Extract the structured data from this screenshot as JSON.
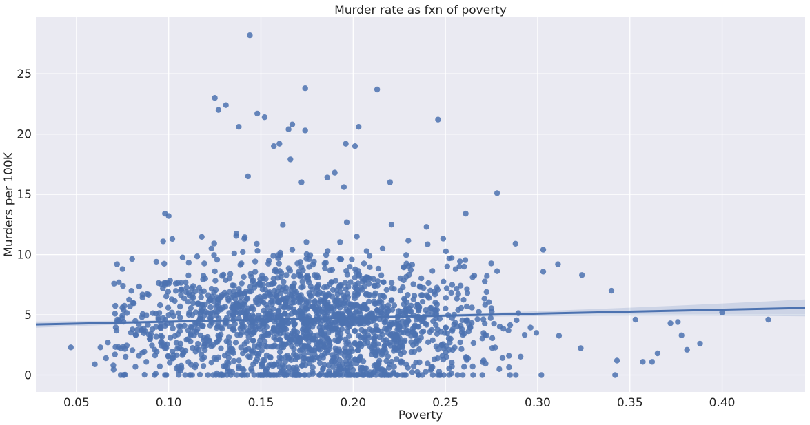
{
  "chart_data": {
    "type": "scatter",
    "title": "Murder rate as fxn of poverty",
    "xlabel": "Poverty",
    "ylabel": "Murders per 100K",
    "xlim": [
      0.028,
      0.445
    ],
    "ylim": [
      -1.4,
      29.7
    ],
    "xticks": [
      0.05,
      0.1,
      0.15,
      0.2,
      0.25,
      0.3,
      0.35,
      0.4
    ],
    "xtick_labels": [
      "0.05",
      "0.10",
      "0.15",
      "0.20",
      "0.25",
      "0.30",
      "0.35",
      "0.40"
    ],
    "yticks": [
      0,
      5,
      10,
      15,
      20,
      25
    ],
    "ytick_labels": [
      "0",
      "5",
      "10",
      "15",
      "20",
      "25"
    ],
    "grid": true,
    "colors": {
      "background": "#eaeaf2",
      "grid": "#ffffff",
      "points": "#4c72b0",
      "line": "#4c72b0",
      "ci_band": "#4c72b0"
    },
    "regression": {
      "intercept": 4.1,
      "slope": 3.32,
      "ci_halfwidth_at_mean": 0.07,
      "x_mean": 0.175
    },
    "highlighted_points": [
      {
        "x": 0.047,
        "y": 2.3
      },
      {
        "x": 0.06,
        "y": 0.9
      },
      {
        "x": 0.063,
        "y": 2.3
      },
      {
        "x": 0.066,
        "y": 1.4
      },
      {
        "x": 0.067,
        "y": 2.7
      },
      {
        "x": 0.07,
        "y": 0.8
      },
      {
        "x": 0.072,
        "y": 9.2
      },
      {
        "x": 0.073,
        "y": 7.7
      },
      {
        "x": 0.074,
        "y": 0.0
      },
      {
        "x": 0.075,
        "y": 8.8
      },
      {
        "x": 0.098,
        "y": 13.4
      },
      {
        "x": 0.1,
        "y": 13.2
      },
      {
        "x": 0.097,
        "y": 11.1
      },
      {
        "x": 0.102,
        "y": 11.3
      },
      {
        "x": 0.098,
        "y": 0.0
      },
      {
        "x": 0.125,
        "y": 23.0
      },
      {
        "x": 0.127,
        "y": 22.0
      },
      {
        "x": 0.131,
        "y": 22.4
      },
      {
        "x": 0.138,
        "y": 20.6
      },
      {
        "x": 0.144,
        "y": 28.2
      },
      {
        "x": 0.148,
        "y": 21.7
      },
      {
        "x": 0.152,
        "y": 21.4
      },
      {
        "x": 0.143,
        "y": 16.5
      },
      {
        "x": 0.16,
        "y": 19.2
      },
      {
        "x": 0.157,
        "y": 19.0
      },
      {
        "x": 0.165,
        "y": 20.4
      },
      {
        "x": 0.167,
        "y": 20.8
      },
      {
        "x": 0.174,
        "y": 23.8
      },
      {
        "x": 0.174,
        "y": 20.3
      },
      {
        "x": 0.166,
        "y": 17.9
      },
      {
        "x": 0.172,
        "y": 16.0
      },
      {
        "x": 0.186,
        "y": 16.4
      },
      {
        "x": 0.19,
        "y": 16.8
      },
      {
        "x": 0.195,
        "y": 15.6
      },
      {
        "x": 0.196,
        "y": 19.2
      },
      {
        "x": 0.201,
        "y": 19.0
      },
      {
        "x": 0.203,
        "y": 20.6
      },
      {
        "x": 0.213,
        "y": 23.7
      },
      {
        "x": 0.22,
        "y": 16.0
      },
      {
        "x": 0.246,
        "y": 21.2
      },
      {
        "x": 0.261,
        "y": 13.4
      },
      {
        "x": 0.278,
        "y": 15.1
      },
      {
        "x": 0.288,
        "y": 10.9
      },
      {
        "x": 0.303,
        "y": 10.4
      },
      {
        "x": 0.311,
        "y": 9.2
      },
      {
        "x": 0.324,
        "y": 8.3
      },
      {
        "x": 0.34,
        "y": 7.0
      },
      {
        "x": 0.353,
        "y": 4.6
      },
      {
        "x": 0.372,
        "y": 4.3
      },
      {
        "x": 0.376,
        "y": 4.4
      },
      {
        "x": 0.378,
        "y": 3.3
      },
      {
        "x": 0.381,
        "y": 2.1
      },
      {
        "x": 0.388,
        "y": 2.6
      },
      {
        "x": 0.4,
        "y": 5.2
      },
      {
        "x": 0.425,
        "y": 4.6
      },
      {
        "x": 0.342,
        "y": 0.0
      },
      {
        "x": 0.343,
        "y": 1.2
      },
      {
        "x": 0.357,
        "y": 1.1
      },
      {
        "x": 0.362,
        "y": 1.1
      },
      {
        "x": 0.365,
        "y": 1.8
      },
      {
        "x": 0.302,
        "y": 0.0
      },
      {
        "x": 0.285,
        "y": 0.0
      },
      {
        "x": 0.27,
        "y": 0.0
      }
    ],
    "bulk_sample": {
      "count": 1900,
      "seed": 7,
      "x_mean": 0.175,
      "x_sd": 0.048,
      "y_mean": 4.4,
      "y_sd": 2.9
    }
  }
}
